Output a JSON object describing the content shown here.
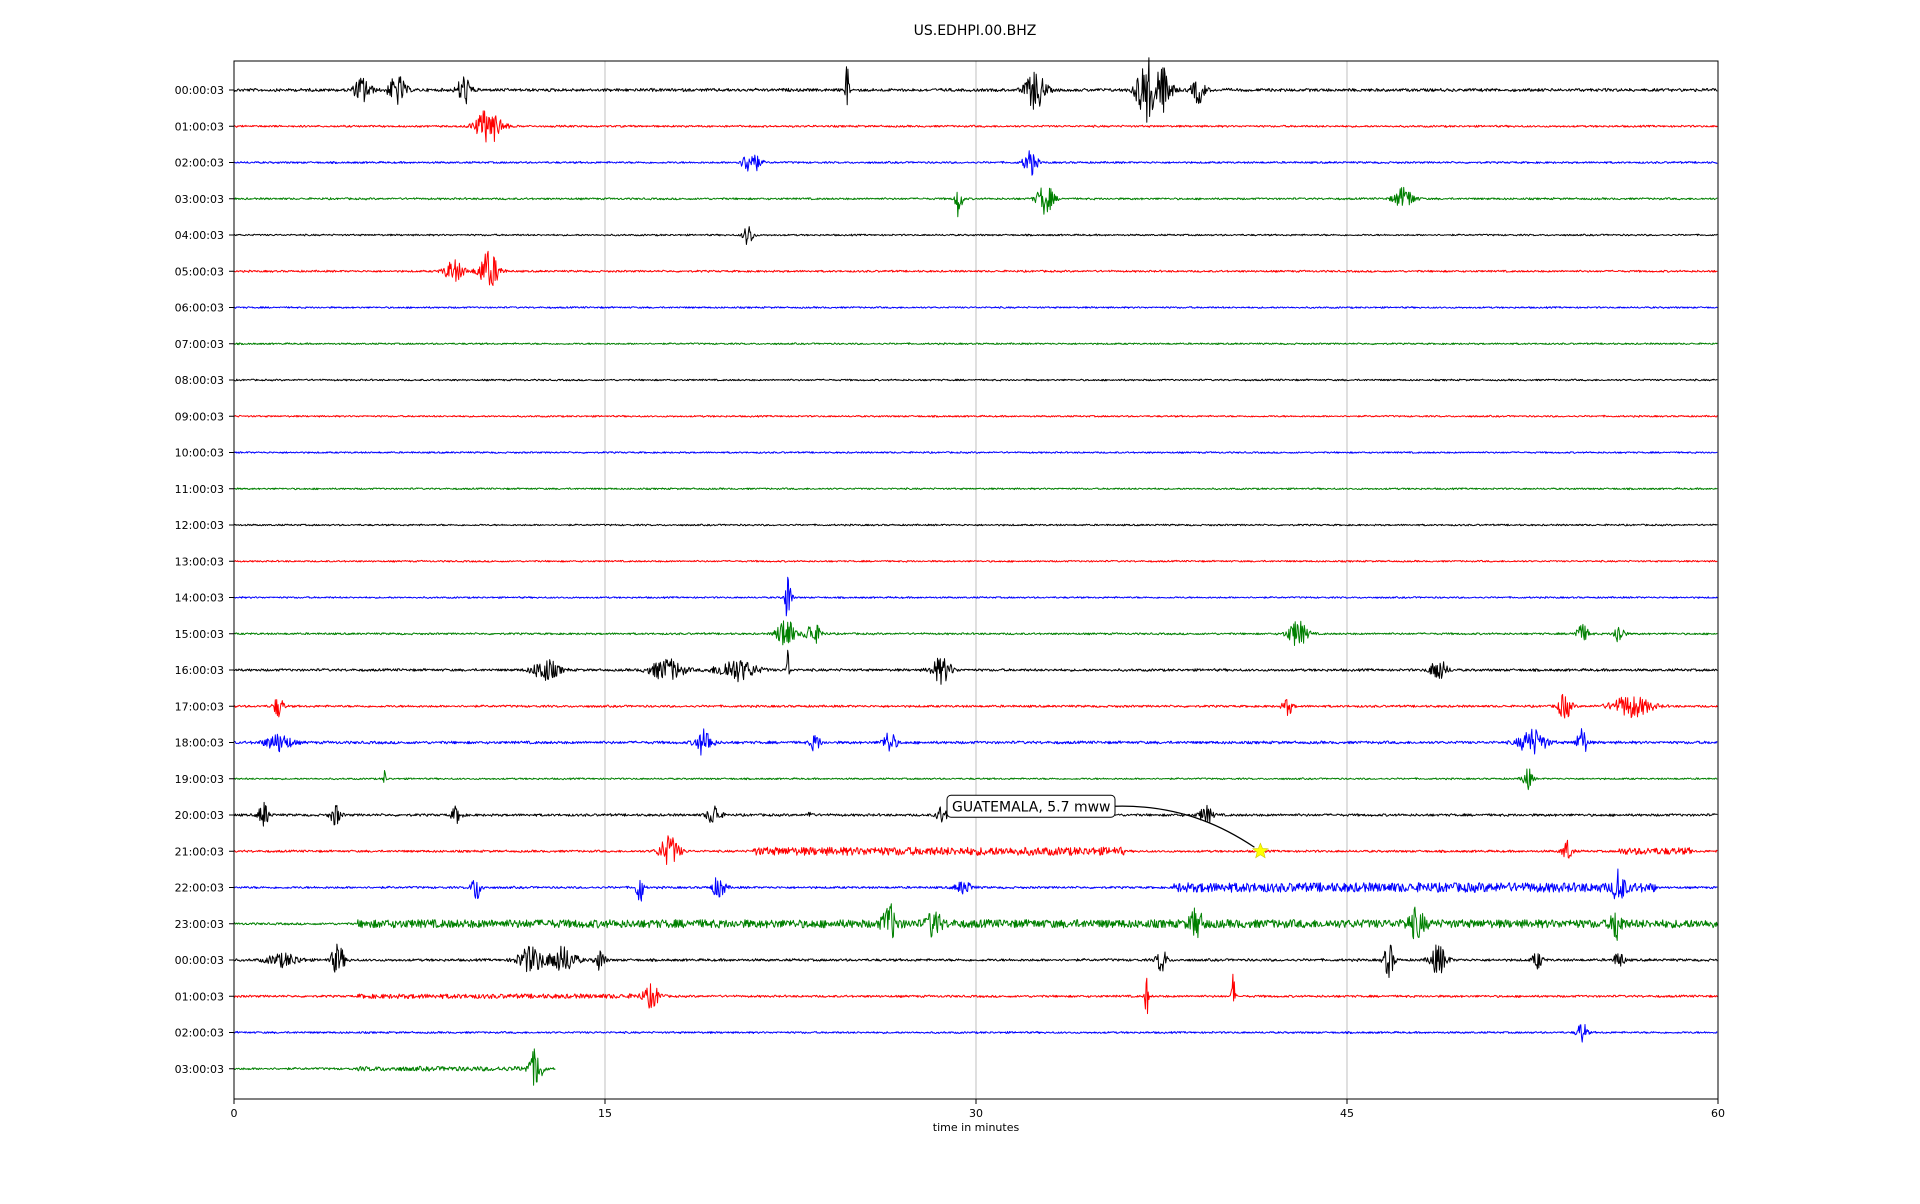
{
  "chart_data": {
    "type": "line",
    "title": "US.EDHPI.00.BHZ",
    "xlabel": "time in minutes",
    "ylabel": "",
    "xlim": [
      0,
      60
    ],
    "x_ticks": [
      "0",
      "15",
      "30",
      "45",
      "60"
    ],
    "x_tick_values": [
      0,
      15,
      30,
      45,
      60
    ],
    "grid": "vertical",
    "row_colors": [
      "#000000",
      "#ff0000",
      "#0000ff",
      "#008000"
    ],
    "rows": [
      {
        "label": "00:00:03",
        "end": 60,
        "noise": 0.55,
        "bursts": [
          [
            5.2,
            0.5,
            0.6
          ],
          [
            6.6,
            0.5,
            0.7
          ],
          [
            9.3,
            0.4,
            0.7
          ],
          [
            24.8,
            0.1,
            1.5
          ],
          [
            32.4,
            0.6,
            0.9
          ],
          [
            36.9,
            0.6,
            1.5
          ],
          [
            37.6,
            0.5,
            1.0
          ],
          [
            39.0,
            0.4,
            0.6
          ]
        ]
      },
      {
        "label": "01:00:03",
        "end": 60,
        "noise": 0.35,
        "bursts": [
          [
            10.3,
            0.8,
            0.8
          ]
        ]
      },
      {
        "label": "02:00:03",
        "end": 60,
        "noise": 0.35,
        "bursts": [
          [
            20.9,
            0.5,
            0.6
          ],
          [
            32.2,
            0.4,
            0.6
          ]
        ]
      },
      {
        "label": "03:00:03",
        "end": 60,
        "noise": 0.35,
        "bursts": [
          [
            29.3,
            0.2,
            0.9
          ],
          [
            32.8,
            0.5,
            0.7
          ],
          [
            47.3,
            0.6,
            0.5
          ]
        ]
      },
      {
        "label": "04:00:03",
        "end": 60,
        "noise": 0.3,
        "bursts": [
          [
            20.8,
            0.3,
            0.5
          ]
        ]
      },
      {
        "label": "05:00:03",
        "end": 60,
        "noise": 0.35,
        "bursts": [
          [
            8.9,
            0.6,
            0.5
          ],
          [
            10.3,
            0.6,
            0.9
          ]
        ]
      },
      {
        "label": "06:00:03",
        "end": 60,
        "noise": 0.3,
        "bursts": []
      },
      {
        "label": "07:00:03",
        "end": 60,
        "noise": 0.3,
        "bursts": []
      },
      {
        "label": "08:00:03",
        "end": 60,
        "noise": 0.3,
        "bursts": []
      },
      {
        "label": "09:00:03",
        "end": 60,
        "noise": 0.3,
        "bursts": []
      },
      {
        "label": "10:00:03",
        "end": 60,
        "noise": 0.3,
        "bursts": []
      },
      {
        "label": "11:00:03",
        "end": 60,
        "noise": 0.3,
        "bursts": []
      },
      {
        "label": "12:00:03",
        "end": 60,
        "noise": 0.3,
        "bursts": []
      },
      {
        "label": "13:00:03",
        "end": 60,
        "noise": 0.3,
        "bursts": []
      },
      {
        "label": "14:00:03",
        "end": 60,
        "noise": 0.3,
        "bursts": [
          [
            22.4,
            0.2,
            1.2
          ]
        ]
      },
      {
        "label": "15:00:03",
        "end": 60,
        "noise": 0.35,
        "bursts": [
          [
            22.3,
            0.5,
            0.8
          ],
          [
            23.4,
            0.5,
            0.5
          ],
          [
            43.0,
            0.6,
            0.6
          ],
          [
            54.5,
            0.4,
            0.4
          ],
          [
            56.0,
            0.3,
            0.5
          ]
        ]
      },
      {
        "label": "16:00:03",
        "end": 60,
        "noise": 0.45,
        "bursts": [
          [
            12.6,
            0.8,
            0.5
          ],
          [
            17.5,
            1.0,
            0.5
          ],
          [
            20.3,
            1.2,
            0.5
          ],
          [
            22.4,
            0.1,
            1.0
          ],
          [
            28.6,
            0.6,
            0.6
          ],
          [
            48.7,
            0.5,
            0.5
          ]
        ]
      },
      {
        "label": "17:00:03",
        "end": 60,
        "noise": 0.4,
        "bursts": [
          [
            1.8,
            0.3,
            0.5
          ],
          [
            42.6,
            0.3,
            0.4
          ],
          [
            53.8,
            0.4,
            0.6
          ],
          [
            56.5,
            1.2,
            0.5
          ]
        ]
      },
      {
        "label": "18:00:03",
        "end": 60,
        "noise": 0.5,
        "bursts": [
          [
            1.8,
            0.8,
            0.4
          ],
          [
            19.0,
            0.5,
            0.6
          ],
          [
            23.5,
            0.3,
            0.4
          ],
          [
            26.5,
            0.4,
            0.5
          ],
          [
            52.5,
            0.8,
            0.6
          ],
          [
            54.5,
            0.3,
            0.7
          ]
        ]
      },
      {
        "label": "19:00:03",
        "end": 60,
        "noise": 0.3,
        "bursts": [
          [
            6.1,
            0.1,
            0.4
          ],
          [
            52.3,
            0.3,
            0.5
          ]
        ]
      },
      {
        "label": "20:00:03",
        "end": 60,
        "noise": 0.45,
        "bursts": [
          [
            1.2,
            0.3,
            0.6
          ],
          [
            4.1,
            0.3,
            0.5
          ],
          [
            9.0,
            0.3,
            0.4
          ],
          [
            19.4,
            0.4,
            0.5
          ],
          [
            23.3,
            0.1,
            0.5
          ],
          [
            28.6,
            0.3,
            0.4
          ],
          [
            39.3,
            0.4,
            0.4
          ]
        ]
      },
      {
        "label": "21:00:03",
        "end": 60,
        "noise": 0.4,
        "bursts": [
          [
            17.6,
            0.6,
            0.7
          ],
          [
            21.0,
            15.0,
            0.25
          ],
          [
            53.9,
            0.3,
            0.5
          ],
          [
            56.0,
            3.0,
            0.2
          ]
        ]
      },
      {
        "label": "22:00:03",
        "end": 60,
        "noise": 0.4,
        "bursts": [
          [
            9.8,
            0.3,
            0.6
          ],
          [
            16.4,
            0.2,
            0.9
          ],
          [
            19.6,
            0.4,
            0.5
          ],
          [
            29.5,
            0.5,
            0.3
          ],
          [
            38.0,
            19.5,
            0.3
          ],
          [
            56.0,
            0.3,
            0.8
          ]
        ]
      },
      {
        "label": "23:00:03",
        "end": 60,
        "noise": 0.4,
        "bursts": [
          [
            5.0,
            55.0,
            0.25
          ],
          [
            26.5,
            0.4,
            0.8
          ],
          [
            28.3,
            0.4,
            0.6
          ],
          [
            38.9,
            0.4,
            0.6
          ],
          [
            47.8,
            0.5,
            0.6
          ],
          [
            55.9,
            0.3,
            0.8
          ]
        ]
      },
      {
        "label": "00:00:03",
        "end": 60,
        "noise": 0.45,
        "bursts": [
          [
            2.0,
            1.0,
            0.3
          ],
          [
            4.2,
            0.4,
            0.7
          ],
          [
            12.0,
            0.8,
            0.6
          ],
          [
            13.3,
            0.8,
            0.6
          ],
          [
            14.8,
            0.3,
            0.5
          ],
          [
            37.5,
            0.3,
            0.6
          ],
          [
            46.7,
            0.3,
            0.8
          ],
          [
            48.7,
            0.5,
            0.7
          ],
          [
            52.7,
            0.3,
            0.4
          ],
          [
            56.0,
            0.3,
            0.4
          ]
        ]
      },
      {
        "label": "01:00:03",
        "end": 60,
        "noise": 0.4,
        "bursts": [
          [
            5.0,
            12.0,
            0.1
          ],
          [
            16.9,
            0.5,
            0.5
          ],
          [
            36.9,
            0.1,
            1.1
          ],
          [
            40.4,
            0.1,
            1.1
          ]
        ]
      },
      {
        "label": "02:00:03",
        "end": 60,
        "noise": 0.35,
        "bursts": [
          [
            54.5,
            0.3,
            0.5
          ]
        ]
      },
      {
        "label": "03:00:03",
        "end": 13,
        "noise": 0.4,
        "bursts": [
          [
            5.0,
            7.0,
            0.1
          ],
          [
            12.2,
            0.4,
            0.9
          ]
        ]
      }
    ],
    "annotation": {
      "text": "GUATEMALA, 5.7 mww",
      "row": 21,
      "x": 41.5,
      "marker": "star",
      "marker_color": "#ffff00"
    }
  }
}
